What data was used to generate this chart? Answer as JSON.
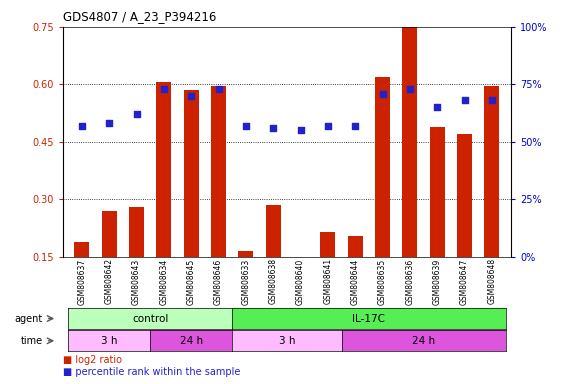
{
  "title": "GDS4807 / A_23_P394216",
  "samples": [
    "GSM808637",
    "GSM808642",
    "GSM808643",
    "GSM808634",
    "GSM808645",
    "GSM808646",
    "GSM808633",
    "GSM808638",
    "GSM808640",
    "GSM808641",
    "GSM808644",
    "GSM808635",
    "GSM808636",
    "GSM808639",
    "GSM808647",
    "GSM808648"
  ],
  "log2_ratio": [
    0.19,
    0.27,
    0.28,
    0.605,
    0.585,
    0.595,
    0.165,
    0.285,
    0.135,
    0.215,
    0.205,
    0.62,
    0.76,
    0.49,
    0.47,
    0.595
  ],
  "percentile_rank": [
    57,
    58,
    62,
    73,
    70,
    73,
    57,
    56,
    55,
    57,
    57,
    71,
    73,
    65,
    68,
    68
  ],
  "ylim_left": [
    0.15,
    0.75
  ],
  "ylim_right": [
    0,
    100
  ],
  "yticks_left": [
    0.15,
    0.3,
    0.45,
    0.6,
    0.75
  ],
  "yticks_right": [
    0,
    25,
    50,
    75,
    100
  ],
  "bar_color": "#cc2200",
  "dot_color": "#2222cc",
  "bg_color": "#ffffff",
  "agent_groups": [
    {
      "label": "control",
      "start": 0,
      "end": 6,
      "color": "#bbffbb"
    },
    {
      "label": "IL-17C",
      "start": 6,
      "end": 16,
      "color": "#55ee55"
    }
  ],
  "time_groups": [
    {
      "label": "3 h",
      "start": 0,
      "end": 3,
      "color": "#ffbbff"
    },
    {
      "label": "24 h",
      "start": 3,
      "end": 6,
      "color": "#dd55dd"
    },
    {
      "label": "3 h",
      "start": 6,
      "end": 10,
      "color": "#ffbbff"
    },
    {
      "label": "24 h",
      "start": 10,
      "end": 16,
      "color": "#dd55dd"
    }
  ],
  "title_color": "#000000",
  "left_axis_color": "#cc2200",
  "right_axis_color": "#0000cc"
}
